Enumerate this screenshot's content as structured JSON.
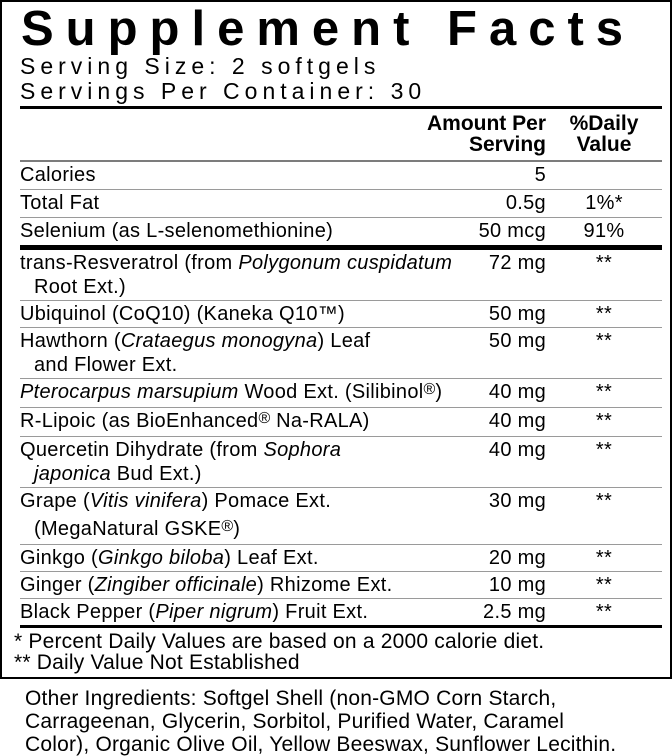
{
  "label": {
    "title": "Supplement Facts",
    "serving_size": "Serving Size: 2 softgels",
    "servings_per_container": "Servings Per Container: 30",
    "header": {
      "amount_line1": "Amount Per",
      "amount_line2": "Serving",
      "dv_line1": "%Daily",
      "dv_line2": "Value"
    },
    "sections": [
      {
        "rows": [
          {
            "lines": [
              {
                "segments": [
                  {
                    "t": "Calories"
                  }
                ]
              }
            ],
            "amount": "5",
            "dv": ""
          },
          {
            "lines": [
              {
                "segments": [
                  {
                    "t": "Total Fat"
                  }
                ]
              }
            ],
            "amount": "0.5g",
            "dv": "1%*"
          },
          {
            "lines": [
              {
                "segments": [
                  {
                    "t": "Selenium (as L-selenomethionine)"
                  }
                ]
              }
            ],
            "amount": "50 mcg",
            "dv": "91%"
          }
        ]
      },
      {
        "rows": [
          {
            "lines": [
              {
                "segments": [
                  {
                    "t": "trans-Resveratrol (from "
                  },
                  {
                    "t": "Polygonum cuspidatum",
                    "i": true
                  }
                ]
              },
              {
                "segments": [
                  {
                    "t": "Root Ext.)"
                  }
                ],
                "cont": true
              }
            ],
            "amount": "72 mg",
            "dv": "**"
          },
          {
            "lines": [
              {
                "segments": [
                  {
                    "t": "Ubiquinol (CoQ10) (Kaneka Q10™)"
                  }
                ]
              }
            ],
            "amount": "50 mg",
            "dv": "**"
          },
          {
            "lines": [
              {
                "segments": [
                  {
                    "t": "Hawthorn ("
                  },
                  {
                    "t": "Crataegus monogyna",
                    "i": true
                  },
                  {
                    "t": ") Leaf"
                  }
                ]
              },
              {
                "segments": [
                  {
                    "t": "and Flower Ext."
                  }
                ],
                "cont": true
              }
            ],
            "amount": "50 mg",
            "dv": "**"
          },
          {
            "lines": [
              {
                "segments": [
                  {
                    "t": "Pterocarpus marsupium",
                    "i": true
                  },
                  {
                    "t": " Wood Ext. (Silibinol"
                  },
                  {
                    "t": "®",
                    "sup": true
                  },
                  {
                    "t": ")"
                  }
                ]
              }
            ],
            "amount": "40 mg",
            "dv": "**"
          },
          {
            "lines": [
              {
                "segments": [
                  {
                    "t": "R-Lipoic (as BioEnhanced"
                  },
                  {
                    "t": "®",
                    "sup": true
                  },
                  {
                    "t": " Na-RALA)"
                  }
                ]
              }
            ],
            "amount": "40 mg",
            "dv": "**"
          },
          {
            "lines": [
              {
                "segments": [
                  {
                    "t": "Quercetin Dihydrate (from "
                  },
                  {
                    "t": "Sophora",
                    "i": true
                  }
                ]
              },
              {
                "segments": [
                  {
                    "t": "japonica",
                    "i": true
                  },
                  {
                    "t": " Bud Ext.)"
                  }
                ],
                "cont": true
              }
            ],
            "amount": "40 mg",
            "dv": "**"
          },
          {
            "lines": [
              {
                "segments": [
                  {
                    "t": "Grape ("
                  },
                  {
                    "t": "Vitis vinifera",
                    "i": true
                  },
                  {
                    "t": ") Pomace Ext."
                  }
                ]
              },
              {
                "segments": [
                  {
                    "t": "(MegaNatural GSKE"
                  },
                  {
                    "t": "®",
                    "sup": true
                  },
                  {
                    "t": ")"
                  }
                ],
                "cont": true,
                "gap": true
              }
            ],
            "amount": "30 mg",
            "dv": "**"
          },
          {
            "lines": [
              {
                "segments": [
                  {
                    "t": "Ginkgo ("
                  },
                  {
                    "t": "Ginkgo biloba",
                    "i": true
                  },
                  {
                    "t": ") Leaf Ext."
                  }
                ]
              }
            ],
            "amount": "20 mg",
            "dv": "**"
          },
          {
            "lines": [
              {
                "segments": [
                  {
                    "t": "Ginger ("
                  },
                  {
                    "t": "Zingiber officinale",
                    "i": true
                  },
                  {
                    "t": ") Rhizome Ext."
                  }
                ]
              }
            ],
            "amount": "10 mg",
            "dv": "**"
          },
          {
            "lines": [
              {
                "segments": [
                  {
                    "t": "Black Pepper ("
                  },
                  {
                    "t": "Piper nigrum",
                    "i": true
                  },
                  {
                    "t": ") Fruit Ext."
                  }
                ]
              }
            ],
            "amount": "2.5 mg",
            "dv": "**"
          }
        ]
      }
    ],
    "footnotes": [
      "* Percent Daily Values are based on a 2000 calorie diet.",
      "** Daily Value Not Established"
    ]
  },
  "other_ingredients": {
    "lines": [
      "Other Ingredients: Softgel Shell (non-GMO Corn Starch,",
      "Carrageenan, Glycerin, Sorbitol, Purified Water, Caramel",
      "Color), Organic Olive Oil, Yellow Beeswax, Sunflower Lecithin."
    ]
  },
  "colors": {
    "text": "#000000",
    "background": "#ffffff",
    "hairline": "#9a9a9a",
    "header_rule": "#7c7c7c"
  }
}
